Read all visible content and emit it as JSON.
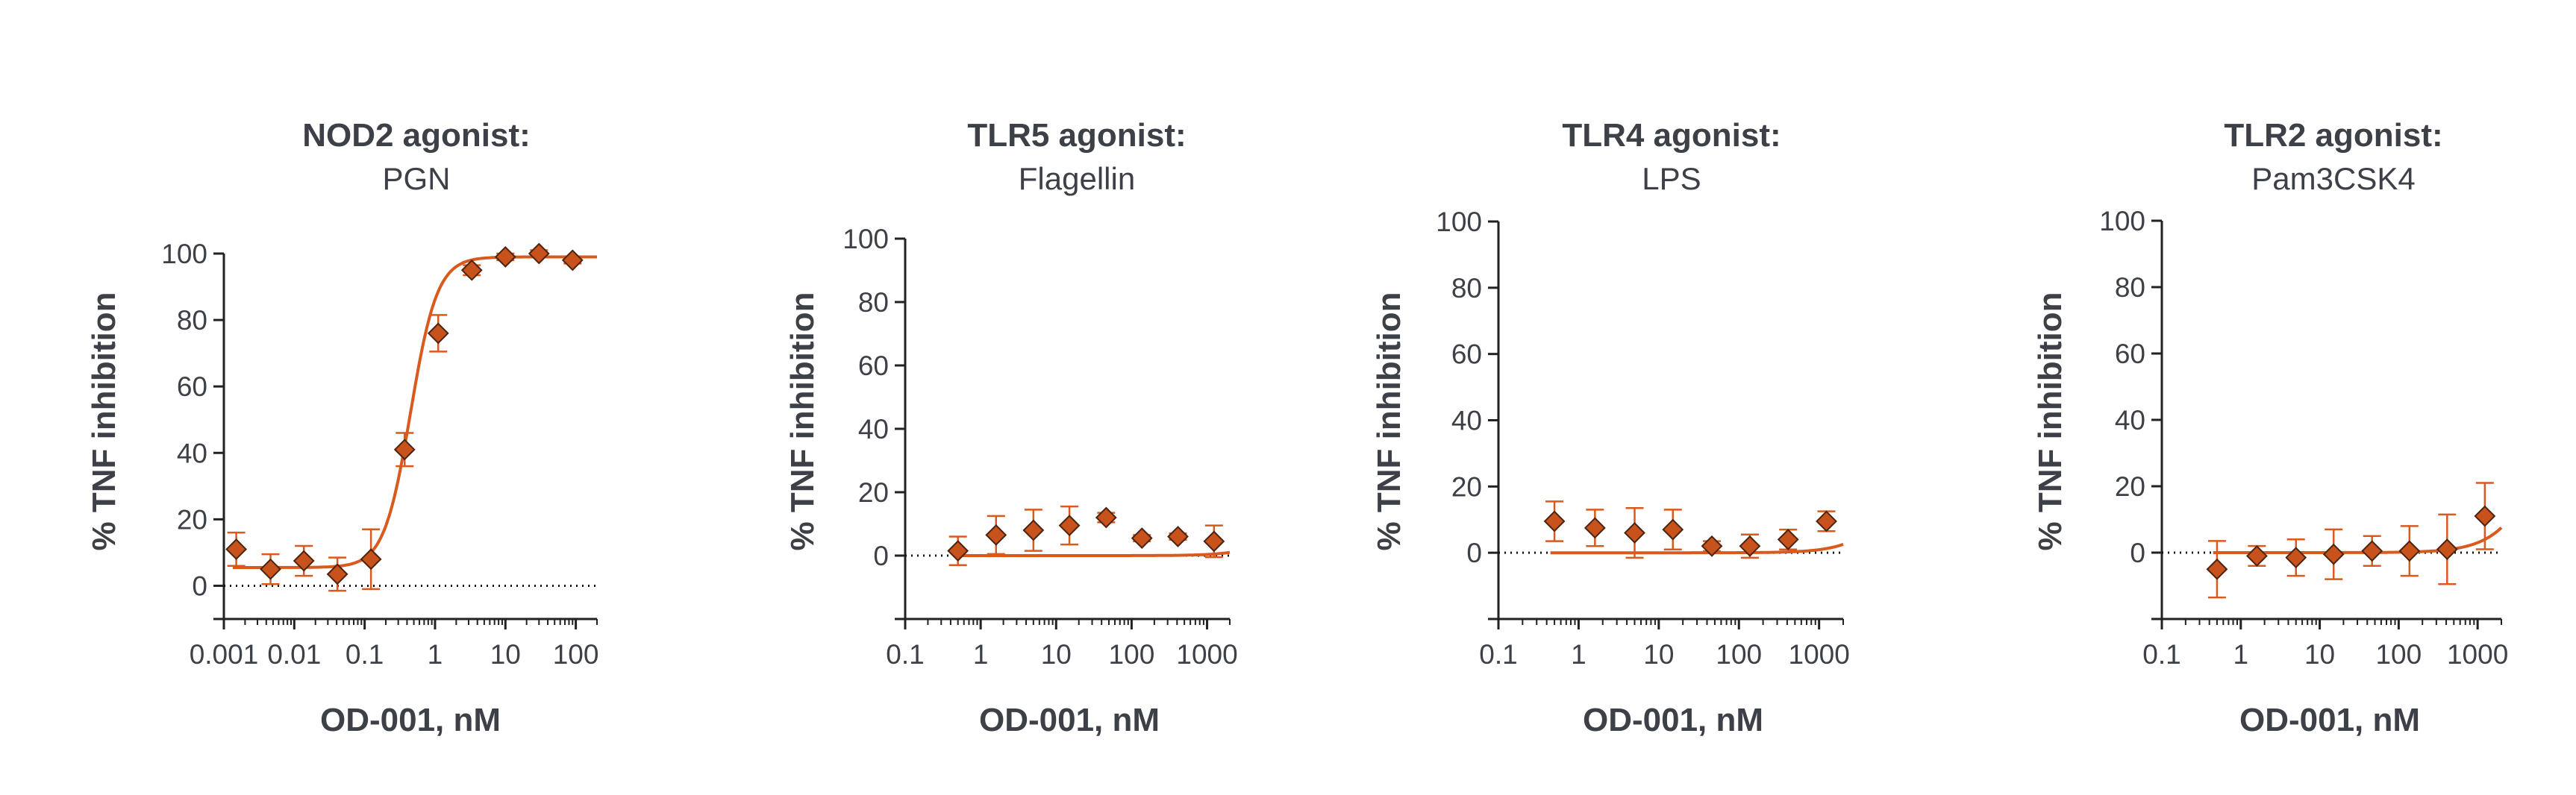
{
  "colors": {
    "marker": "#c8521b",
    "curve": "#d95a1e",
    "axis": "#222222",
    "text": "#3d4147"
  },
  "chart_data": [
    {
      "type": "scatter",
      "title": "NOD2 agonist:",
      "subtitle": "PGN",
      "xlabel": "OD-001, nM",
      "ylabel": "% TNF inhibition",
      "xscale": "log",
      "xlim": [
        0.001,
        200
      ],
      "ylim": [
        -10,
        100
      ],
      "xticks": [
        0.001,
        0.01,
        0.1,
        1,
        10,
        100
      ],
      "xtick_labels": [
        "0.001",
        "0.01",
        "0.1",
        "1",
        "10",
        "100"
      ],
      "yticks": [
        0,
        20,
        40,
        60,
        80,
        100
      ],
      "ytick_labels": [
        "0",
        "20",
        "40",
        "60",
        "80",
        "100"
      ],
      "reference_line": 0,
      "series": [
        {
          "name": "OD-001",
          "x": [
            0.0015,
            0.0046,
            0.0137,
            0.041,
            0.123,
            0.37,
            1.11,
            3.33,
            10,
            30,
            90
          ],
          "y": [
            11,
            5,
            7.5,
            3.5,
            8,
            41,
            76,
            95,
            99,
            100,
            98
          ],
          "err": [
            5,
            4.5,
            4.5,
            5,
            9,
            5,
            5.5,
            1.5,
            1,
            1,
            1
          ]
        }
      ],
      "fit": {
        "model": "4PL",
        "bottom": 5.5,
        "top": 99,
        "ic50": 0.45,
        "hill": 2.3
      }
    },
    {
      "type": "scatter",
      "title": "TLR5 agonist:",
      "subtitle": "Flagellin",
      "xlabel": "OD-001, nM",
      "ylabel": "% TNF inhibition",
      "xscale": "log",
      "xlim": [
        0.1,
        2000
      ],
      "ylim": [
        -20,
        100
      ],
      "xticks": [
        0.1,
        1,
        10,
        100,
        1000
      ],
      "xtick_labels": [
        "0.1",
        "1",
        "10",
        "100",
        "1000"
      ],
      "yticks": [
        0,
        20,
        40,
        60,
        80,
        100
      ],
      "ytick_labels": [
        "0",
        "20",
        "40",
        "60",
        "80",
        "100"
      ],
      "reference_line": 0,
      "series": [
        {
          "name": "OD-001",
          "x": [
            0.5,
            1.6,
            5,
            15,
            46,
            137,
            411,
            1235
          ],
          "y": [
            1.5,
            6.5,
            8,
            9.5,
            12,
            5.5,
            6,
            4.5
          ],
          "err": [
            4.5,
            6,
            6.5,
            6,
            1.5,
            1,
            1,
            5
          ]
        }
      ],
      "fit": {
        "model": "4PL",
        "bottom": 0,
        "top": 60,
        "ic50": 30000,
        "hill": 1.5
      }
    },
    {
      "type": "scatter",
      "title": "TLR4 agonist:",
      "subtitle": "LPS",
      "xlabel": "OD-001, nM",
      "ylabel": "% TNF inhibition",
      "xscale": "log",
      "xlim": [
        0.1,
        2000
      ],
      "ylim": [
        -20,
        100
      ],
      "xticks": [
        0.1,
        1,
        10,
        100,
        1000
      ],
      "xtick_labels": [
        "0.1",
        "1",
        "10",
        "100",
        "1000"
      ],
      "yticks": [
        0,
        20,
        40,
        60,
        80,
        100
      ],
      "ytick_labels": [
        "0",
        "20",
        "40",
        "60",
        "80",
        "100"
      ],
      "reference_line": 0,
      "series": [
        {
          "name": "OD-001",
          "x": [
            0.5,
            1.6,
            5,
            15,
            46,
            137,
            411,
            1235
          ],
          "y": [
            9.5,
            7.5,
            6,
            7,
            2,
            2,
            4,
            9.5
          ],
          "err": [
            6,
            5.5,
            7.5,
            6,
            1.5,
            3.5,
            3,
            3
          ]
        }
      ],
      "fit": {
        "model": "4PL",
        "bottom": 0,
        "top": 60,
        "ic50": 16000,
        "hill": 1.5
      }
    },
    {
      "type": "scatter",
      "title": "TLR2 agonist:",
      "subtitle": "Pam3CSK4",
      "xlabel": "OD-001, nM",
      "ylabel": "% TNF inhibition",
      "xscale": "log",
      "xlim": [
        0.1,
        2000
      ],
      "ylim": [
        -20,
        100
      ],
      "xticks": [
        0.1,
        1,
        10,
        100,
        1000
      ],
      "xtick_labels": [
        "0.1",
        "1",
        "10",
        "100",
        "1000"
      ],
      "yticks": [
        0,
        20,
        40,
        60,
        80,
        100
      ],
      "ytick_labels": [
        "0",
        "20",
        "40",
        "60",
        "80",
        "100"
      ],
      "reference_line": 0,
      "series": [
        {
          "name": "OD-001",
          "x": [
            0.5,
            1.6,
            5,
            15,
            46,
            137,
            411,
            1235
          ],
          "y": [
            -5,
            -1,
            -1.5,
            -0.5,
            0.5,
            0.5,
            1,
            11
          ],
          "err": [
            8.5,
            3,
            5.5,
            7.5,
            4.5,
            7.5,
            10.5,
            10
          ]
        }
      ],
      "fit": {
        "model": "4PL",
        "bottom": 0,
        "top": 100,
        "ic50": 12000,
        "hill": 1.4
      }
    }
  ]
}
